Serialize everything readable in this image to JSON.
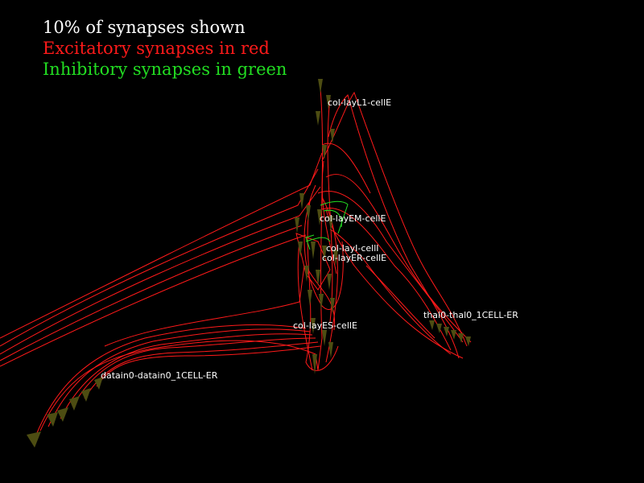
{
  "legend": {
    "line1": "10% of synapses shown",
    "line2": "Excitatory synapses in red",
    "line3": "Inhibitory synapses in green"
  },
  "colors": {
    "background": "#000000",
    "excitatory": "#ff1a1a",
    "inhibitory": "#22dd22",
    "legend_title": "#ffffff",
    "cell_marker": "#4d4d12",
    "label": "#ffffff"
  },
  "populations": {
    "layL1": "col-layL1-cellE",
    "layEM": "col-layEM-cellE",
    "layI": "col-layI-cellI",
    "layER": "col-layER-cellE",
    "layES": "col-layES-cellE",
    "thal0": "thal0-thal0_1CELL-ER",
    "datain0": "datain0-datain0_1CELL-ER"
  }
}
